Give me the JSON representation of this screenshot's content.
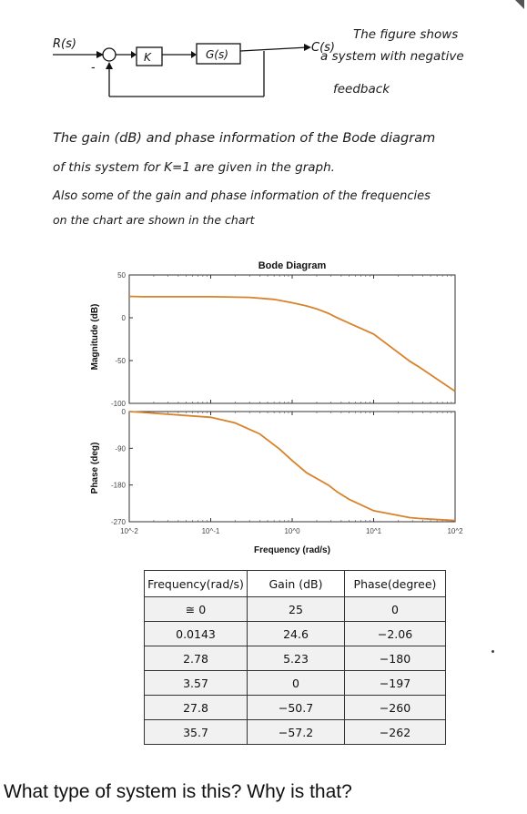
{
  "block_diagram": {
    "input_label": "R(s)",
    "gain_label": "K",
    "plant_label": "G(s)",
    "output_label": "C(s)",
    "summing_minus": "-",
    "note_lines": [
      "The figure shows",
      "a system with negative",
      "feedback"
    ]
  },
  "description_lines": [
    "The gain (dB) and phase information of the Bode diagram",
    "of this system for K=1 are given in the graph.",
    "Also some of the gain and phase information of the frequencies",
    "on the chart are shown in the chart"
  ],
  "chart_data": [
    {
      "type": "line",
      "title": "Bode Diagram",
      "xlabel": "Frequency (rad/s)",
      "ylabel": "Magnitude (dB)",
      "x_scale": "log",
      "xlim": [
        0.01,
        100
      ],
      "ylim": [
        -100,
        50
      ],
      "yticks": [
        "50",
        "0",
        "-50",
        "-100"
      ],
      "xticks": [
        "10^-2",
        "10^-1",
        "10^0",
        "10^1",
        "10^2"
      ],
      "series": [
        {
          "x": [
            0.01,
            0.0143,
            0.1,
            0.3,
            0.6,
            1,
            1.5,
            2,
            2.78,
            3.57,
            5,
            10,
            27.8,
            35.7,
            100
          ],
          "y": [
            25,
            24.6,
            24.6,
            23.8,
            21.5,
            17.5,
            13.8,
            10.4,
            5.23,
            0,
            -6.3,
            -19,
            -50.7,
            -57.2,
            -86
          ]
        }
      ],
      "line_color": "#d9822b",
      "grid": false
    },
    {
      "type": "line",
      "xlabel": "Frequency (rad/s)",
      "ylabel": "Phase (deg)",
      "x_scale": "log",
      "xlim": [
        0.01,
        100
      ],
      "ylim": [
        -270,
        0
      ],
      "yticks": [
        "0",
        "-90",
        "-180",
        "-270"
      ],
      "xticks": [
        "10^-2",
        "10^-1",
        "10^0",
        "10^1",
        "10^2"
      ],
      "series": [
        {
          "x": [
            0.01,
            0.0143,
            0.1,
            0.2,
            0.4,
            0.7,
            1,
            1.5,
            2.78,
            3.57,
            5,
            10,
            27.8,
            35.7,
            100
          ],
          "y": [
            0,
            -2.06,
            -14,
            -28,
            -55,
            -92,
            -120,
            -150,
            -180,
            -197,
            -215,
            -243,
            -260,
            -262,
            -267
          ]
        }
      ],
      "line_color": "#d9822b",
      "grid": false
    }
  ],
  "table": {
    "headers": [
      "Frequency(rad/s)",
      "Gain (dB)",
      "Phase(degree)"
    ],
    "rows": [
      [
        "≅ 0",
        "25",
        "0"
      ],
      [
        "0.0143",
        "24.6",
        "−2.06"
      ],
      [
        "2.78",
        "5.23",
        "−180"
      ],
      [
        "3.57",
        "0",
        "−197"
      ],
      [
        "27.8",
        "−50.7",
        "−260"
      ],
      [
        "35.7",
        "−57.2",
        "−262"
      ]
    ]
  },
  "question": "What type of system is this? Why is that?"
}
